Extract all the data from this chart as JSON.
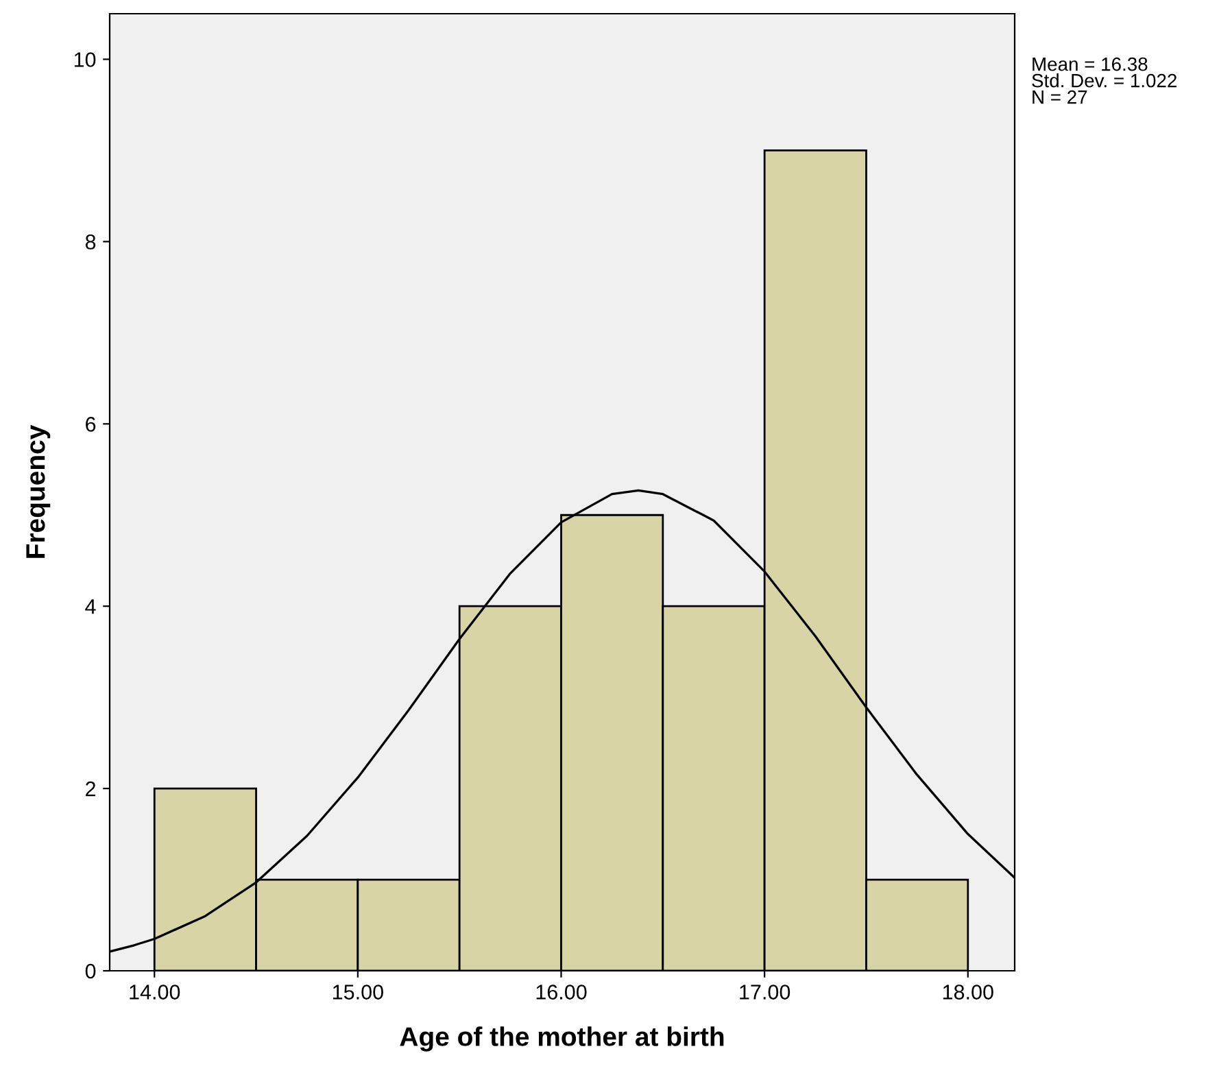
{
  "chart_data": {
    "type": "histogram",
    "xlabel": "Age of the mother at birth",
    "ylabel": "Frequency",
    "xlim": [
      13.78,
      18.23
    ],
    "ylim": [
      0,
      10.5
    ],
    "xticks": [
      {
        "value": 14,
        "label": "14.00"
      },
      {
        "value": 15,
        "label": "15.00"
      },
      {
        "value": 16,
        "label": "16.00"
      },
      {
        "value": 17,
        "label": "17.00"
      },
      {
        "value": 18,
        "label": "18.00"
      }
    ],
    "yticks": [
      0,
      2,
      4,
      6,
      8,
      10
    ],
    "grid": false,
    "legend": false,
    "series": [
      {
        "bins": [
          14.0,
          14.5,
          15.0,
          15.5,
          16.0,
          16.5,
          17.0,
          17.5,
          18.0
        ],
        "values": [
          2,
          1,
          1,
          4,
          5,
          4,
          9,
          1
        ],
        "color": "#d9d4a6"
      },
      {
        "type": "line",
        "color": "#000000",
        "x": [
          13.78,
          13.9,
          14.0,
          14.25,
          14.5,
          14.75,
          15.0,
          15.25,
          15.5,
          15.75,
          16.0,
          16.25,
          16.38,
          16.5,
          16.75,
          17.0,
          17.25,
          17.5,
          17.75,
          18.0,
          18.23
        ],
        "values": [
          0.21,
          0.28,
          0.35,
          0.6,
          0.97,
          1.48,
          2.12,
          2.86,
          3.64,
          4.36,
          4.92,
          5.23,
          5.27,
          5.23,
          4.94,
          4.38,
          3.67,
          2.89,
          2.15,
          1.5,
          1.02
        ]
      }
    ],
    "annotations": [
      "Mean = 16.38",
      "Std. Dev. = 1.022",
      "N = 27"
    ]
  }
}
